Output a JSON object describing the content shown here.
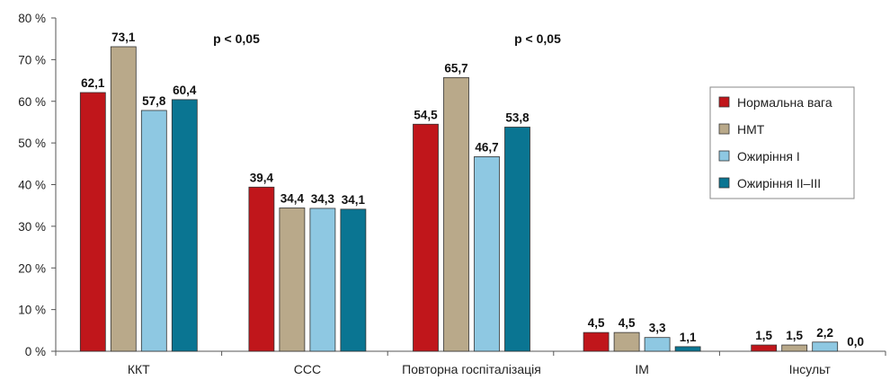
{
  "chart_data": {
    "type": "bar",
    "categories": [
      "ККТ",
      "ССС",
      "Повторна госпіталізація",
      "ІМ",
      "Інсульт"
    ],
    "series": [
      {
        "name": "Нормальна вага",
        "color": "#c0161b",
        "values": [
          62.1,
          39.4,
          54.5,
          4.5,
          1.5
        ],
        "labels": [
          "62,1",
          "39,4",
          "54,5",
          "4,5",
          "1,5"
        ]
      },
      {
        "name": "НМТ",
        "color": "#b9a98a",
        "values": [
          73.1,
          34.4,
          65.7,
          4.5,
          1.5
        ],
        "labels": [
          "73,1",
          "34,4",
          "65,7",
          "4,5",
          "1,5"
        ]
      },
      {
        "name": "Ожиріння І",
        "color": "#8ec8e2",
        "values": [
          57.8,
          34.3,
          46.7,
          3.3,
          2.2
        ],
        "labels": [
          "57,8",
          "34,3",
          "46,7",
          "3,3",
          "2,2"
        ]
      },
      {
        "name": "Ожиріння ІІ–ІІІ",
        "color": "#0a7592",
        "values": [
          60.4,
          34.1,
          53.8,
          1.1,
          0.0
        ],
        "labels": [
          "60,4",
          "34,1",
          "53,8",
          "1,1",
          "0,0"
        ]
      }
    ],
    "ylim": [
      0,
      80
    ],
    "yticks": [
      0,
      10,
      20,
      30,
      40,
      50,
      60,
      70,
      80
    ],
    "ytick_labels": [
      "0 %",
      "10 %",
      "20 %",
      "30 %",
      "40 %",
      "50 %",
      "60 %",
      "70 %",
      "80 %"
    ],
    "grid": false,
    "legend_position": "right",
    "annotations": [
      {
        "text": "p < 0,05",
        "category": "ККТ"
      },
      {
        "text": "p < 0,05",
        "category": "Повторна госпіталізація"
      }
    ],
    "xlabel": "",
    "ylabel": "",
    "title": ""
  }
}
